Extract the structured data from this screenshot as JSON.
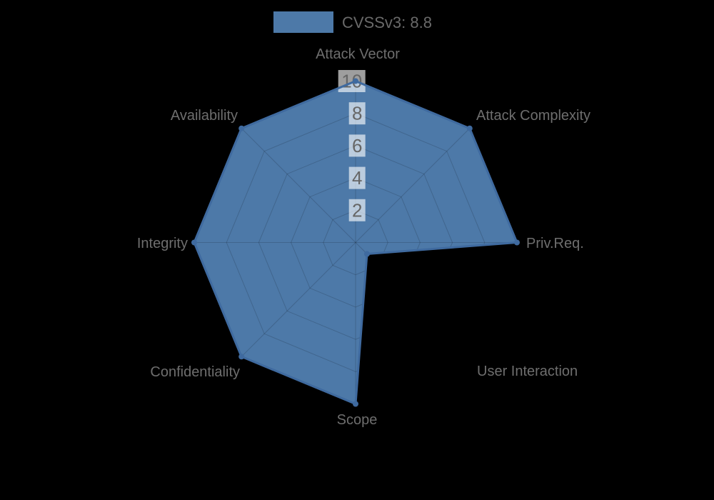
{
  "chart_data": {
    "type": "radar",
    "title": "CVSSv3: 8.8",
    "legend": {
      "label": "CVSSv3: 8.8",
      "position": "top"
    },
    "categories": [
      "Attack Vector",
      "Attack Complexity",
      "Priv.Req.",
      "User Interaction",
      "Scope",
      "Confidentiality",
      "Integrity",
      "Availability"
    ],
    "series": [
      {
        "name": "CVSSv3: 8.8",
        "values": [
          10,
          10,
          10,
          1,
          10,
          10,
          10,
          10
        ]
      }
    ],
    "ticks": [
      2,
      4,
      6,
      8,
      10
    ],
    "rmin": 0,
    "rmax": 10,
    "grid": "octagonal-rings-and-angle-lines",
    "colors": {
      "background": "#000000",
      "fill": "#4d79a8",
      "stroke": "#3f6a9f",
      "grid_line": "rgba(0,0,0,0.16)",
      "tick_backdrop": "rgba(255,255,255,0.62)",
      "tick_text": "#666666",
      "axis_label_text": "#6e6e6e",
      "legend_text": "#6a6a6a"
    }
  }
}
